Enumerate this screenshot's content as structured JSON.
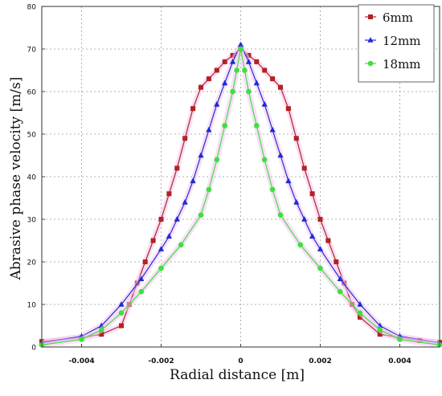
{
  "chart_data": {
    "type": "line",
    "xlabel": "Radial distance [m]",
    "ylabel": "Abrasive phase velocity [m/s]",
    "xlim": [
      -0.005,
      0.005
    ],
    "ylim": [
      0,
      80
    ],
    "xticks": [
      -0.004,
      -0.002,
      0,
      0.002,
      0.004
    ],
    "xtick_labels": [
      "-0.004",
      "-0.002",
      "0",
      "0.002",
      "0.004"
    ],
    "yticks": [
      0,
      10,
      20,
      30,
      40,
      50,
      60,
      70,
      80
    ],
    "ytick_labels": [
      "0",
      "10",
      "20",
      "30",
      "40",
      "50",
      "60",
      "70",
      "80"
    ],
    "grid": true,
    "legend_position": "top-right",
    "series": [
      {
        "name": "6mm",
        "color": "#b22222",
        "marker": "square",
        "x": [
          -0.005,
          -0.004,
          -0.0035,
          -0.003,
          -0.0028,
          -0.0026,
          -0.0024,
          -0.0022,
          -0.002,
          -0.0018,
          -0.0016,
          -0.0014,
          -0.0012,
          -0.001,
          -0.0008,
          -0.0006,
          -0.0004,
          -0.0002,
          0,
          0.0002,
          0.0004,
          0.0006,
          0.0008,
          0.001,
          0.0012,
          0.0014,
          0.0016,
          0.0018,
          0.002,
          0.0022,
          0.0024,
          0.0026,
          0.0028,
          0.003,
          0.0035,
          0.004,
          0.0045,
          0.005
        ],
        "y": [
          1.3,
          2.2,
          3,
          5,
          10,
          15,
          20,
          25,
          30,
          36,
          42,
          49,
          56,
          61,
          63,
          65,
          67,
          68.5,
          70,
          68.5,
          67,
          65,
          63,
          61,
          56,
          49,
          42,
          36,
          30,
          25,
          20,
          15,
          10,
          7,
          3,
          2.2,
          1.5,
          1.1
        ]
      },
      {
        "name": "12mm",
        "color": "#1f2bd6",
        "marker": "triangle",
        "x": [
          -0.005,
          -0.004,
          -0.0035,
          -0.003,
          -0.0025,
          -0.002,
          -0.0018,
          -0.0016,
          -0.0014,
          -0.0012,
          -0.001,
          -0.0008,
          -0.0006,
          -0.0004,
          -0.0002,
          0,
          0.0002,
          0.0004,
          0.0006,
          0.0008,
          0.001,
          0.0012,
          0.0014,
          0.0016,
          0.0018,
          0.002,
          0.0025,
          0.003,
          0.0035,
          0.004,
          0.005
        ],
        "y": [
          1,
          2.5,
          5,
          10,
          16,
          23,
          26,
          30,
          34,
          39,
          45,
          51,
          57,
          62,
          67,
          71,
          67,
          62,
          57,
          51,
          45,
          39,
          34,
          30,
          26,
          23,
          16,
          10,
          5,
          2.5,
          1
        ]
      },
      {
        "name": "18mm",
        "color": "#3ee03e",
        "marker": "circle",
        "x": [
          -0.005,
          -0.004,
          -0.0035,
          -0.003,
          -0.0025,
          -0.002,
          -0.0015,
          -0.001,
          -0.0008,
          -0.0006,
          -0.0004,
          -0.0002,
          -0.0001,
          0,
          0.0001,
          0.0002,
          0.0004,
          0.0006,
          0.0008,
          0.001,
          0.0015,
          0.002,
          0.0025,
          0.003,
          0.0035,
          0.004,
          0.005
        ],
        "y": [
          0.5,
          1.8,
          4,
          8,
          13,
          18.5,
          24,
          31,
          37,
          44,
          52,
          60,
          65,
          70,
          65,
          60,
          52,
          44,
          37,
          31,
          24,
          18.5,
          13,
          8,
          4,
          1.8,
          0.5
        ]
      }
    ]
  }
}
